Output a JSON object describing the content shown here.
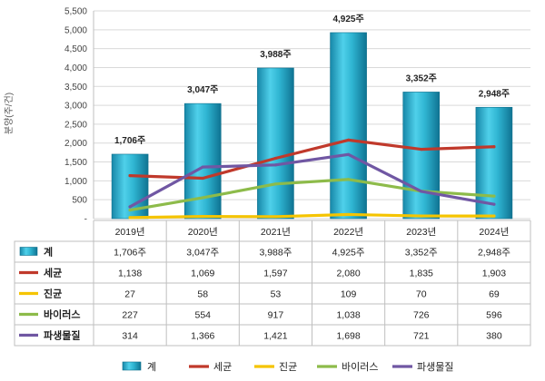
{
  "chart_data": {
    "type": "bar",
    "ylabel": "분양(주/건)",
    "ylim": [
      0,
      5500
    ],
    "yticks": [
      0,
      500,
      1000,
      1500,
      2000,
      2500,
      3000,
      3500,
      4000,
      4500,
      5000,
      5500
    ],
    "ytick_labels": [
      "-",
      "500",
      "1,000",
      "1,500",
      "2,000",
      "2,500",
      "3,000",
      "3,500",
      "4,000",
      "4,500",
      "5,000",
      "5,500"
    ],
    "categories": [
      "2019년",
      "2020년",
      "2021년",
      "2022년",
      "2023년",
      "2024년"
    ],
    "grid": true,
    "legend_position": "bottom",
    "series": [
      {
        "name": "계",
        "type": "bar",
        "color": "#2aa9c9",
        "values": [
          1706,
          3047,
          3988,
          4925,
          3352,
          2948
        ],
        "labels": [
          "1,706주",
          "3,047주",
          "3,988주",
          "4,925주",
          "3,352주",
          "2,948주"
        ]
      },
      {
        "name": "세균",
        "type": "line",
        "color": "#c0392b",
        "values": [
          1138,
          1069,
          1597,
          2080,
          1835,
          1903
        ],
        "labels": [
          "1,138",
          "1,069",
          "1,597",
          "2,080",
          "1,835",
          "1,903"
        ]
      },
      {
        "name": "진균",
        "type": "line",
        "color": "#f5c400",
        "values": [
          27,
          58,
          53,
          109,
          70,
          69
        ],
        "labels": [
          "27",
          "58",
          "53",
          "109",
          "70",
          "69"
        ]
      },
      {
        "name": "바이러스",
        "type": "line",
        "color": "#8dbb4a",
        "values": [
          227,
          554,
          917,
          1038,
          726,
          596
        ],
        "labels": [
          "227",
          "554",
          "917",
          "1,038",
          "726",
          "596"
        ]
      },
      {
        "name": "파생물질",
        "type": "line",
        "color": "#7057a3",
        "values": [
          314,
          1366,
          1421,
          1698,
          721,
          380
        ],
        "labels": [
          "314",
          "1,366",
          "1,421",
          "1,698",
          "721",
          "380"
        ]
      }
    ]
  }
}
